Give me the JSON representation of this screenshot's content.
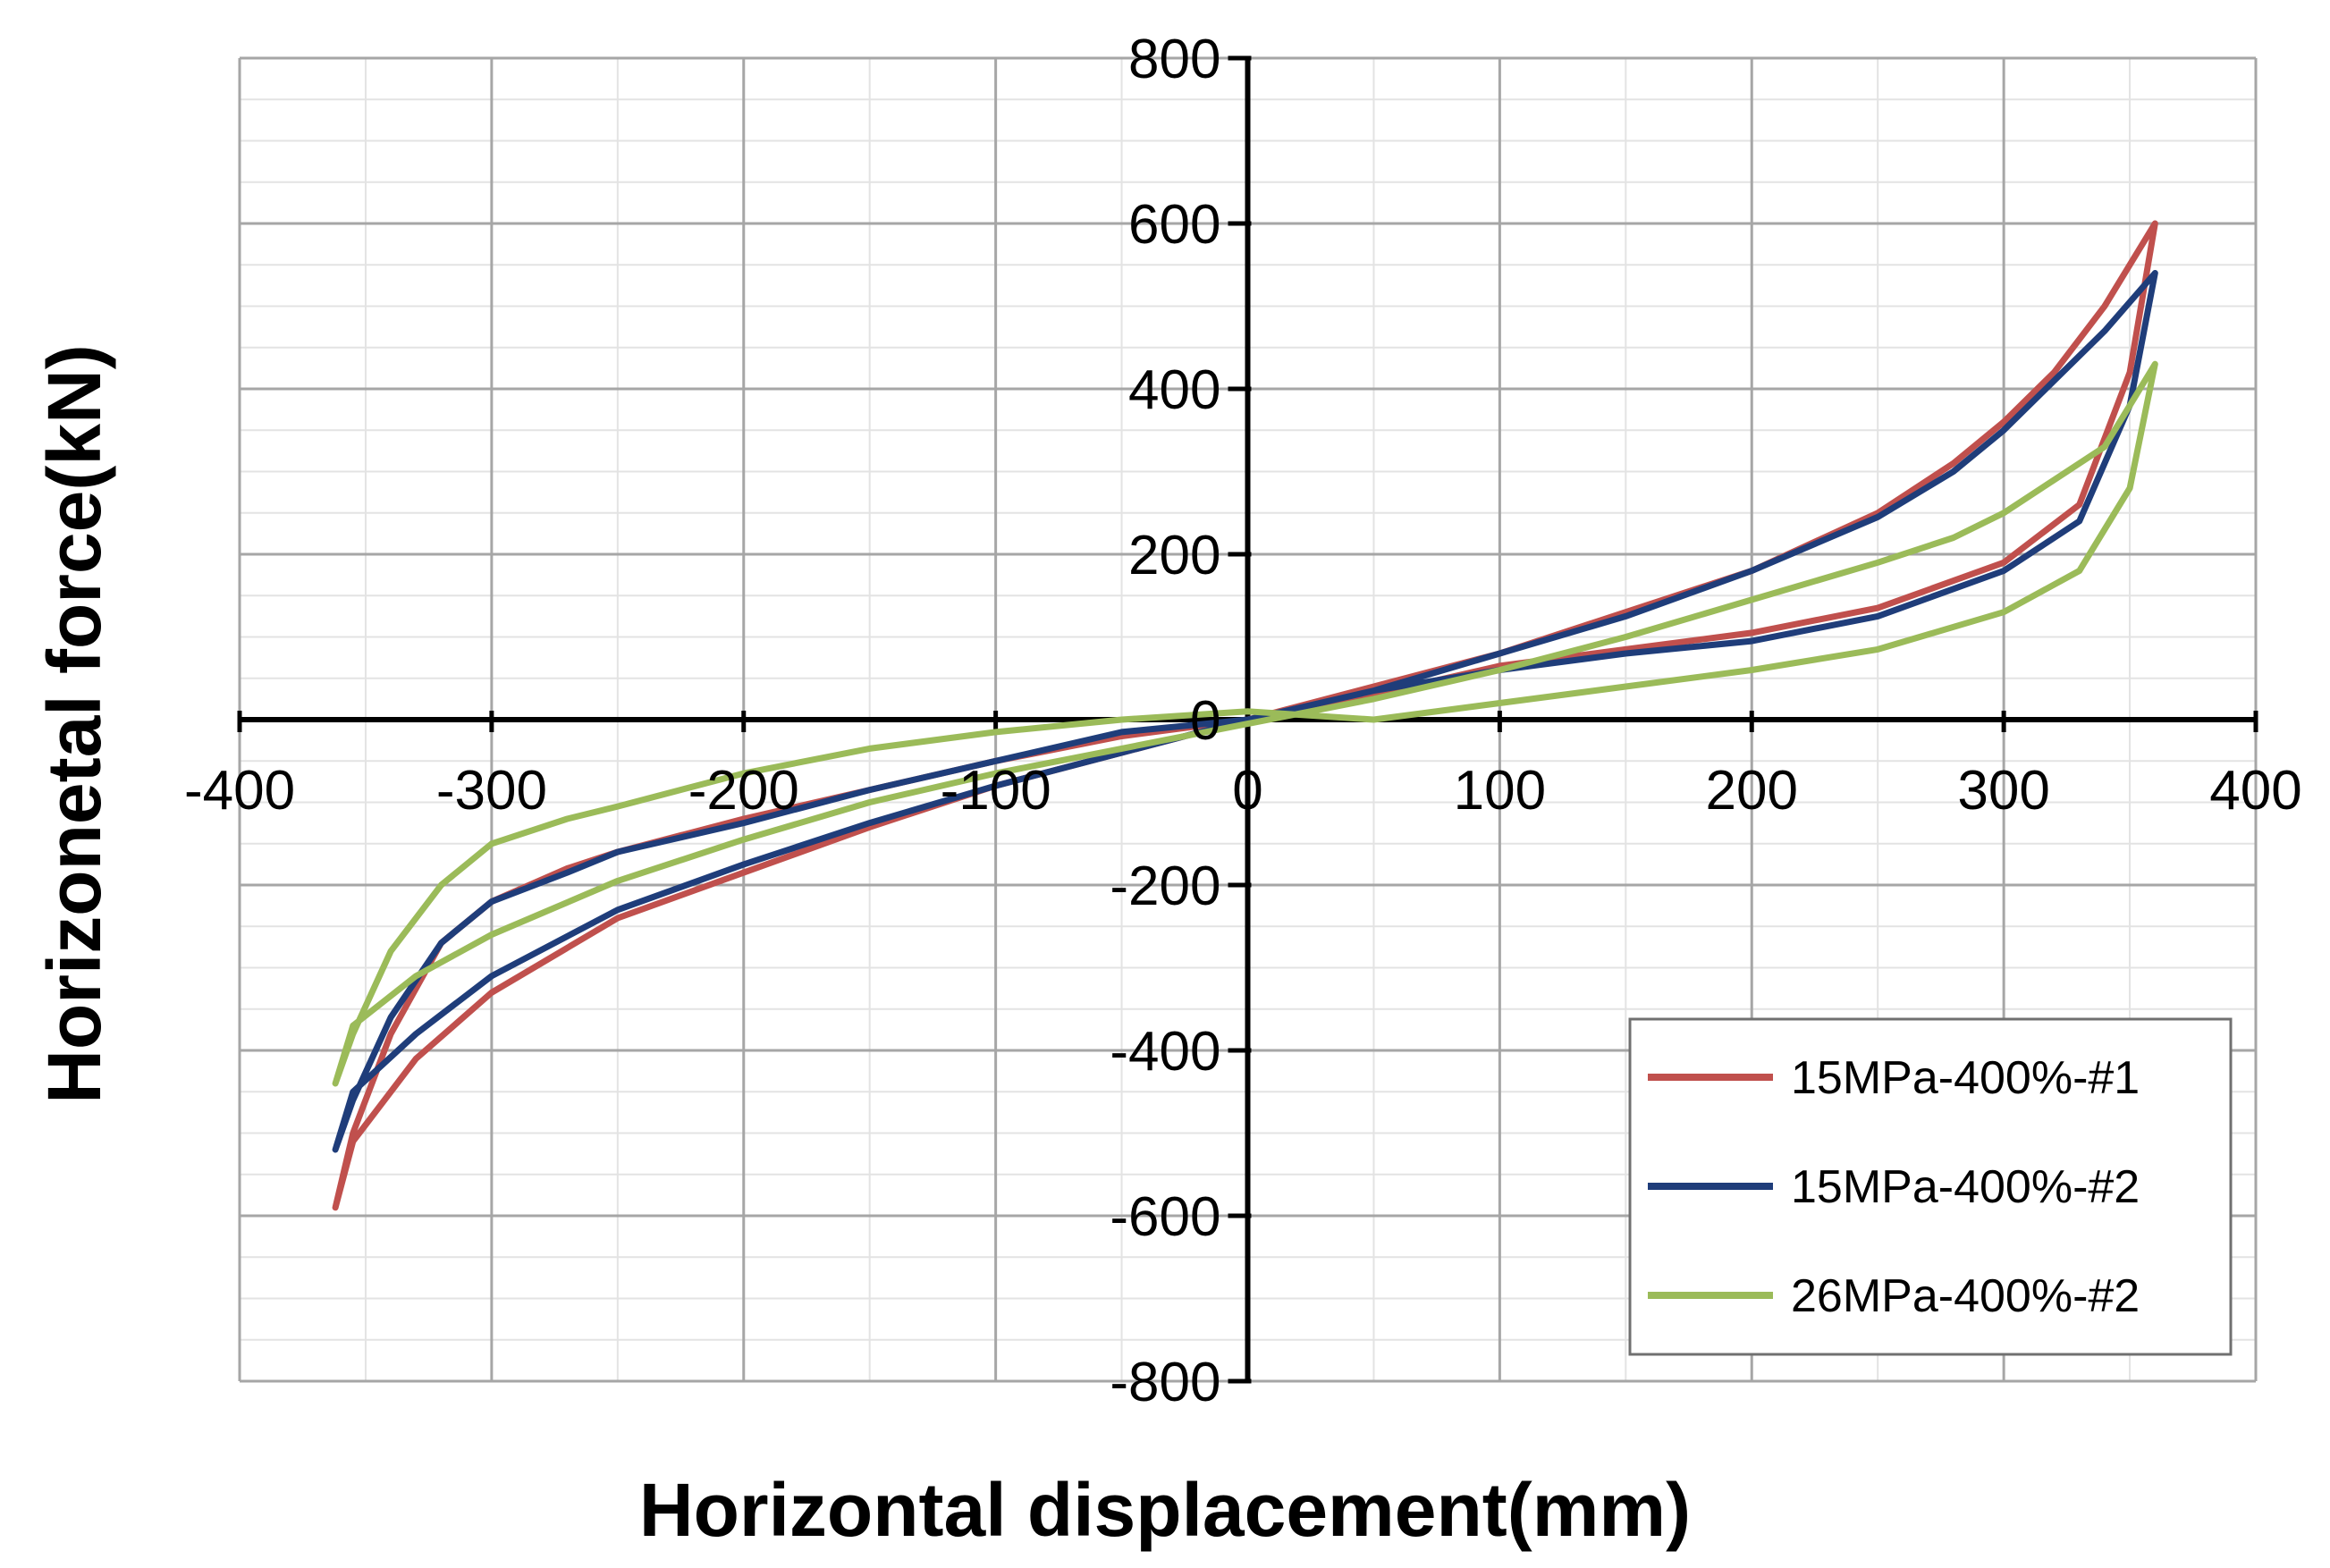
{
  "chart_data": {
    "type": "line",
    "title": "",
    "xlabel": "Horizontal displacement(mm)",
    "ylabel": "Horizonetal  force(kN)",
    "xlim": [
      -400,
      400
    ],
    "ylim": [
      -800,
      800
    ],
    "xticks": [
      -400,
      -300,
      -200,
      -100,
      0,
      100,
      200,
      300,
      400
    ],
    "yticks": [
      -800,
      -600,
      -400,
      -200,
      0,
      200,
      400,
      600,
      800
    ],
    "xtick_labels": [
      "-400",
      "-300",
      "-200",
      "-100",
      "0",
      "100",
      "200",
      "300",
      "400"
    ],
    "ytick_labels": [
      "-800",
      "-600",
      "-400",
      "-200",
      "0",
      "200",
      "400",
      "600",
      "800"
    ],
    "grid": true,
    "legend_position": "bottom-right",
    "series": [
      {
        "name": "15MPa-400%-#1",
        "color": "#c0504d",
        "x": [
          360,
          340,
          320,
          300,
          280,
          250,
          200,
          150,
          100,
          50,
          0,
          -50,
          -100,
          -150,
          -200,
          -250,
          -300,
          -330,
          -355,
          -362,
          -355,
          -340,
          -320,
          -300,
          -270,
          -250,
          -200,
          -150,
          -100,
          -50,
          0,
          50,
          100,
          150,
          200,
          250,
          300,
          330,
          350,
          360
        ],
        "y": [
          600,
          500,
          420,
          360,
          310,
          250,
          180,
          130,
          80,
          40,
          0,
          -40,
          -80,
          -130,
          -185,
          -240,
          -330,
          -410,
          -510,
          -590,
          -500,
          -380,
          -270,
          -220,
          -180,
          -160,
          -120,
          -85,
          -50,
          -20,
          0,
          30,
          65,
          85,
          105,
          135,
          190,
          260,
          420,
          600
        ]
      },
      {
        "name": "15MPa-400%-#2",
        "color": "#1f3d7a",
        "x": [
          360,
          340,
          320,
          300,
          280,
          250,
          200,
          150,
          100,
          50,
          0,
          -50,
          -100,
          -150,
          -200,
          -250,
          -300,
          -330,
          -355,
          -362,
          -355,
          -340,
          -320,
          -300,
          -270,
          -250,
          -200,
          -150,
          -100,
          -50,
          0,
          50,
          100,
          150,
          200,
          250,
          300,
          330,
          350,
          360
        ],
        "y": [
          540,
          470,
          410,
          350,
          300,
          245,
          180,
          125,
          80,
          35,
          0,
          -40,
          -80,
          -125,
          -175,
          -230,
          -310,
          -380,
          -450,
          -520,
          -460,
          -360,
          -270,
          -220,
          -185,
          -160,
          -125,
          -85,
          -50,
          -15,
          0,
          35,
          60,
          80,
          95,
          125,
          180,
          240,
          380,
          540
        ]
      },
      {
        "name": "26MPa-400%-#2",
        "color": "#9bbb59",
        "x": [
          360,
          340,
          320,
          300,
          280,
          250,
          200,
          150,
          100,
          50,
          0,
          -50,
          -100,
          -150,
          -200,
          -250,
          -300,
          -330,
          -355,
          -362,
          -355,
          -340,
          -320,
          -300,
          -270,
          -250,
          -200,
          -150,
          -100,
          -50,
          0,
          50,
          100,
          150,
          200,
          250,
          300,
          330,
          350,
          360
        ],
        "y": [
          430,
          330,
          290,
          250,
          220,
          190,
          145,
          100,
          60,
          25,
          -5,
          -35,
          -65,
          -100,
          -145,
          -195,
          -260,
          -310,
          -370,
          -440,
          -380,
          -280,
          -200,
          -150,
          -120,
          -105,
          -65,
          -35,
          -15,
          0,
          10,
          0,
          20,
          40,
          60,
          85,
          130,
          180,
          280,
          430
        ]
      }
    ]
  }
}
